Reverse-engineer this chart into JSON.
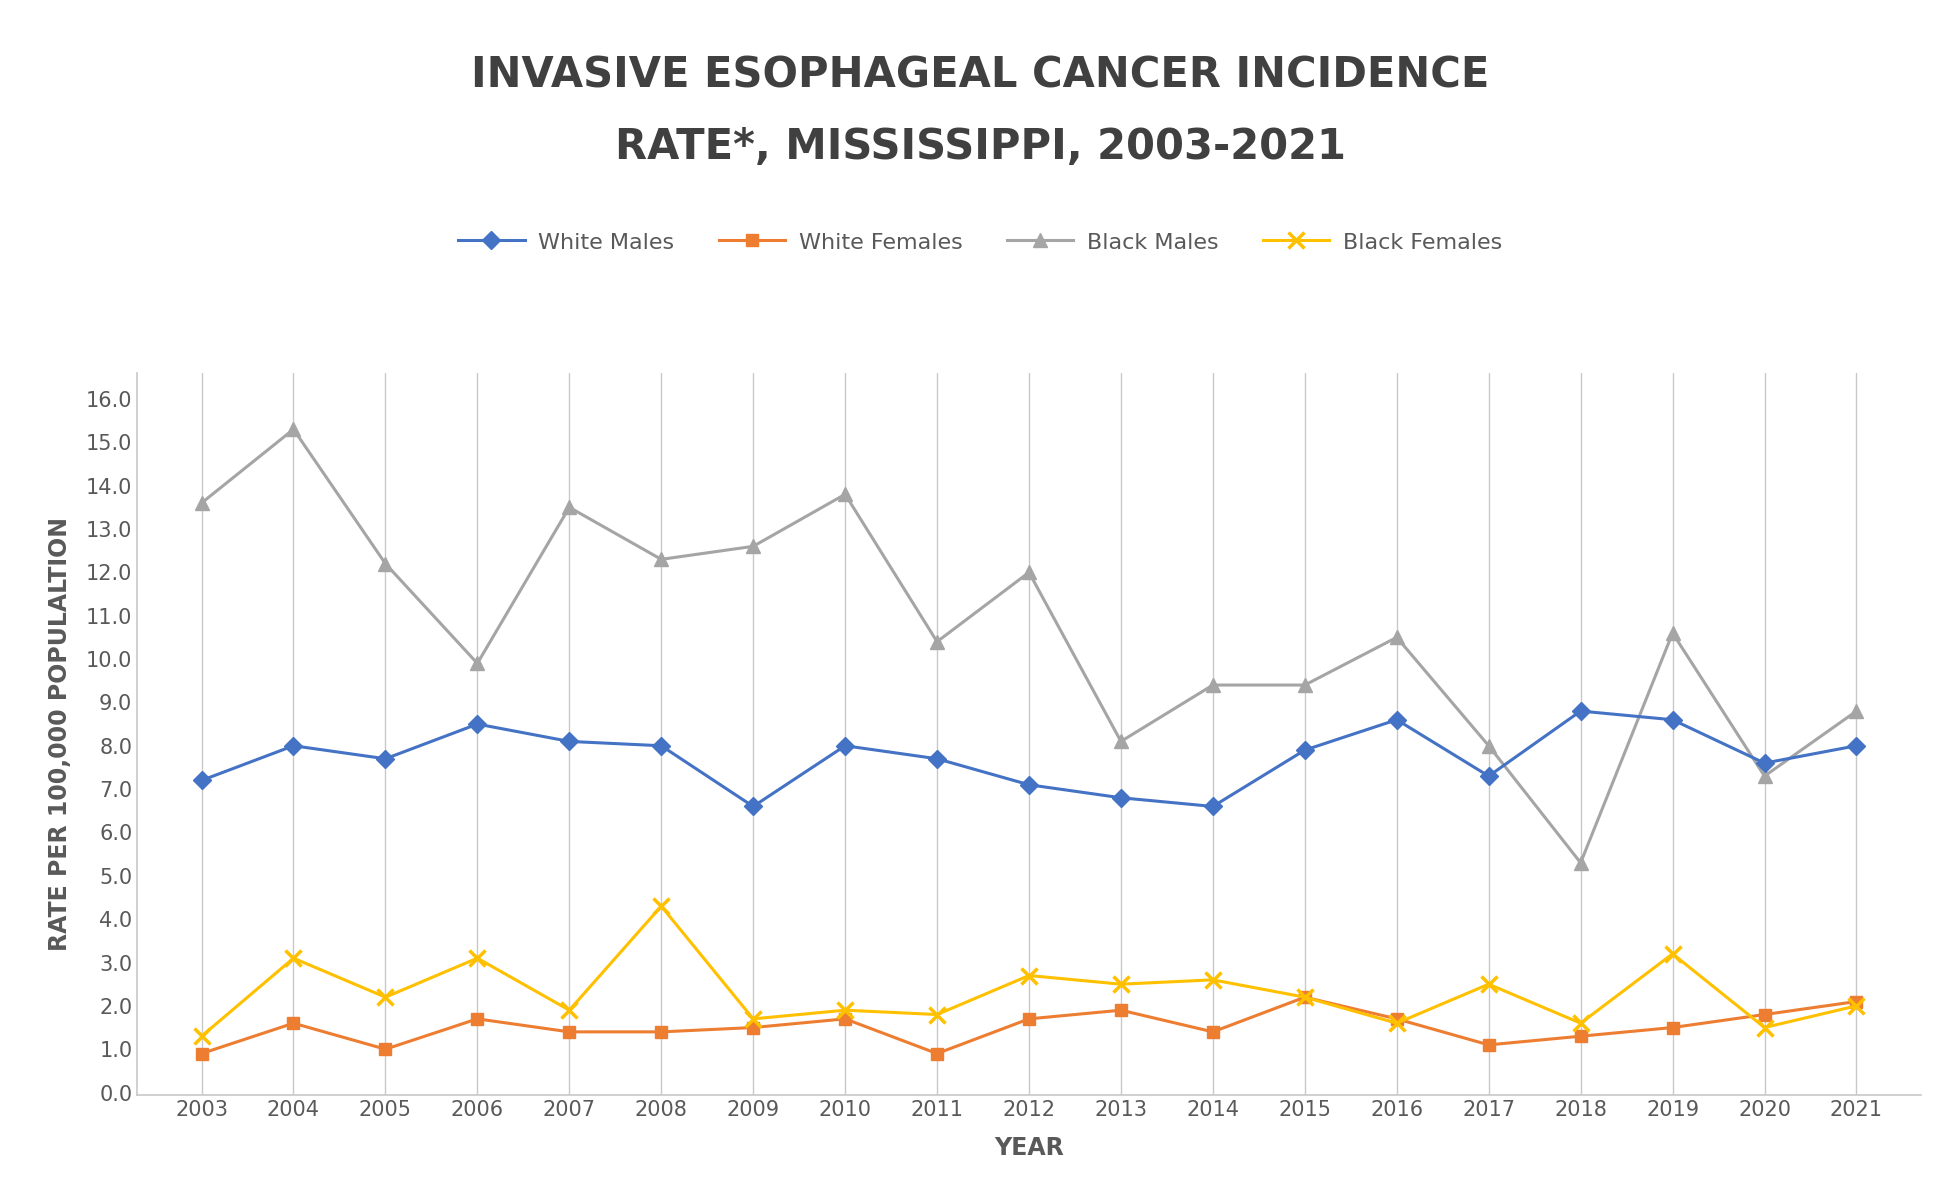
{
  "title_line1": "INVASIVE ESOPHAGEAL CANCER INCIDENCE",
  "title_line2": "RATE*, MISSISSIPPI, 2003-2021",
  "xlabel": "YEAR",
  "ylabel": "RATE PER 100,000 POPULALTION",
  "years": [
    2003,
    2004,
    2005,
    2006,
    2007,
    2008,
    2009,
    2010,
    2011,
    2012,
    2013,
    2014,
    2015,
    2016,
    2017,
    2018,
    2019,
    2020,
    2021
  ],
  "white_males": [
    7.2,
    8.0,
    7.7,
    8.5,
    8.1,
    8.0,
    6.6,
    8.0,
    7.7,
    7.1,
    6.8,
    6.6,
    7.9,
    8.6,
    7.3,
    8.8,
    8.6,
    7.6,
    8.0
  ],
  "white_females": [
    0.9,
    1.6,
    1.0,
    1.7,
    1.4,
    1.4,
    1.5,
    1.7,
    0.9,
    1.7,
    1.9,
    1.4,
    2.2,
    1.7,
    1.1,
    1.3,
    1.5,
    1.8,
    2.1
  ],
  "black_males": [
    13.6,
    15.3,
    12.2,
    9.9,
    13.5,
    12.3,
    12.6,
    13.8,
    10.4,
    12.0,
    8.1,
    9.4,
    9.4,
    10.5,
    8.0,
    5.3,
    10.6,
    7.3,
    8.8
  ],
  "black_females": [
    1.3,
    3.1,
    2.2,
    3.1,
    1.9,
    4.3,
    1.7,
    1.9,
    1.8,
    2.7,
    2.5,
    2.6,
    2.2,
    1.6,
    2.5,
    1.6,
    3.2,
    1.5,
    2.0
  ],
  "white_males_color": "#4472C4",
  "white_females_color": "#ED7D31",
  "black_males_color": "#A5A5A5",
  "black_females_color": "#FFC000",
  "yticks": [
    0.0,
    1.0,
    2.0,
    3.0,
    4.0,
    5.0,
    6.0,
    7.0,
    8.0,
    9.0,
    10.0,
    11.0,
    12.0,
    13.0,
    14.0,
    15.0,
    16.0
  ],
  "title_fontsize": 30,
  "axis_label_fontsize": 17,
  "tick_fontsize": 15,
  "legend_fontsize": 16,
  "title_color": "#404040",
  "tick_color": "#595959",
  "grid_color": "#C8C8C8",
  "spine_color": "#C8C8C8"
}
